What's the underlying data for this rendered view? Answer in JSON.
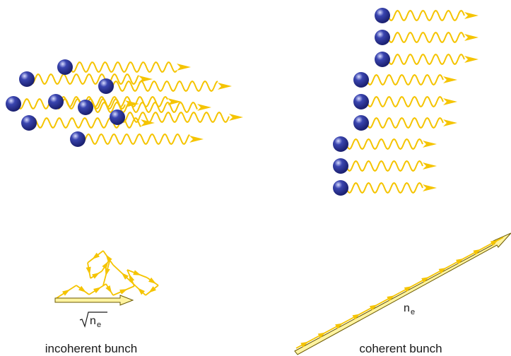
{
  "panels": {
    "incoherent": {
      "caption": "incoherent bunch",
      "resultant_label": "n",
      "resultant_subscript": "e"
    },
    "coherent": {
      "caption": "coherent bunch",
      "resultant_label": "n",
      "resultant_subscript": "e"
    }
  },
  "colors": {
    "electron_dark": "#1a1f6e",
    "electron_mid": "#3a45b0",
    "electron_highlight": "#d8dcff",
    "wave": "#f5c400",
    "arrow_outline": "#6b5a00",
    "arrow_fill": "#fff3a0"
  },
  "icons": {
    "electron": "sphere-icon",
    "wave": "wavy-arrow-icon",
    "root": "square-root-glyph"
  }
}
